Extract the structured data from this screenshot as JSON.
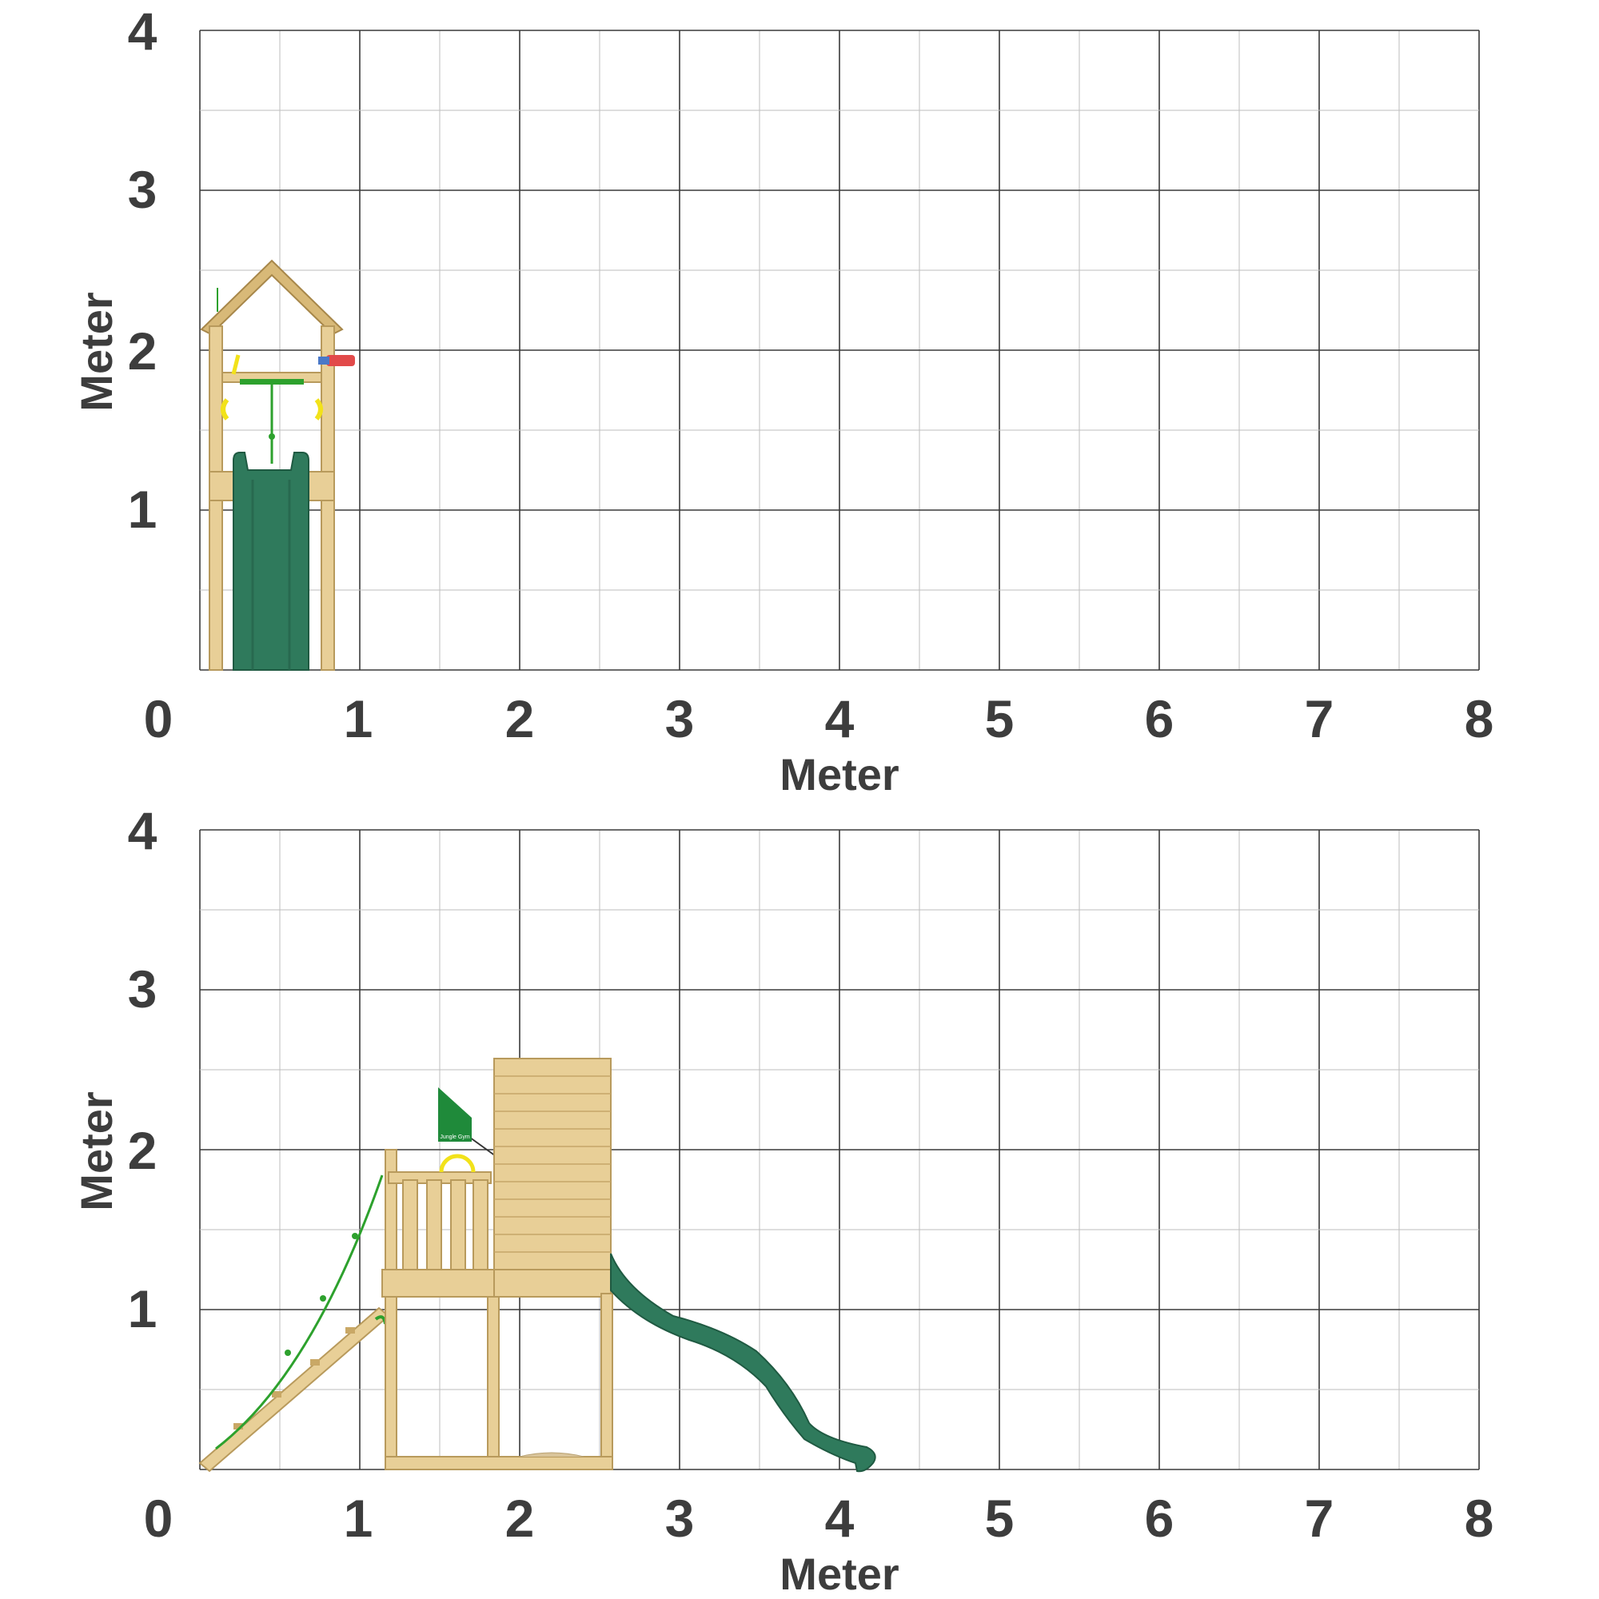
{
  "views": [
    {
      "name": "front-view",
      "x_axis_title": "Meter",
      "y_axis_title": "Meter",
      "x_ticks": [
        "0",
        "1",
        "2",
        "3",
        "4",
        "5",
        "6",
        "7",
        "8"
      ],
      "y_ticks": [
        "1",
        "2",
        "3",
        "4"
      ],
      "x_range_m": [
        0,
        8
      ],
      "y_range_m": [
        0,
        4
      ],
      "object": "playtower-front"
    },
    {
      "name": "side-view",
      "x_axis_title": "Meter",
      "y_axis_title": "Meter",
      "x_ticks": [
        "0",
        "1",
        "2",
        "3",
        "4",
        "5",
        "6",
        "7",
        "8"
      ],
      "y_ticks": [
        "1",
        "2",
        "3",
        "4"
      ],
      "x_range_m": [
        0,
        8
      ],
      "y_range_m": [
        0,
        4
      ],
      "object": "playtower-side"
    }
  ],
  "colors": {
    "wood": "#e8cf97",
    "slide": "#2f7a5c",
    "rope": "#2da12d",
    "handle": "#f2e21a",
    "flag": "#1f8a3a",
    "telescope": "#e24a4a"
  },
  "flag_text": "Jungle Gym"
}
